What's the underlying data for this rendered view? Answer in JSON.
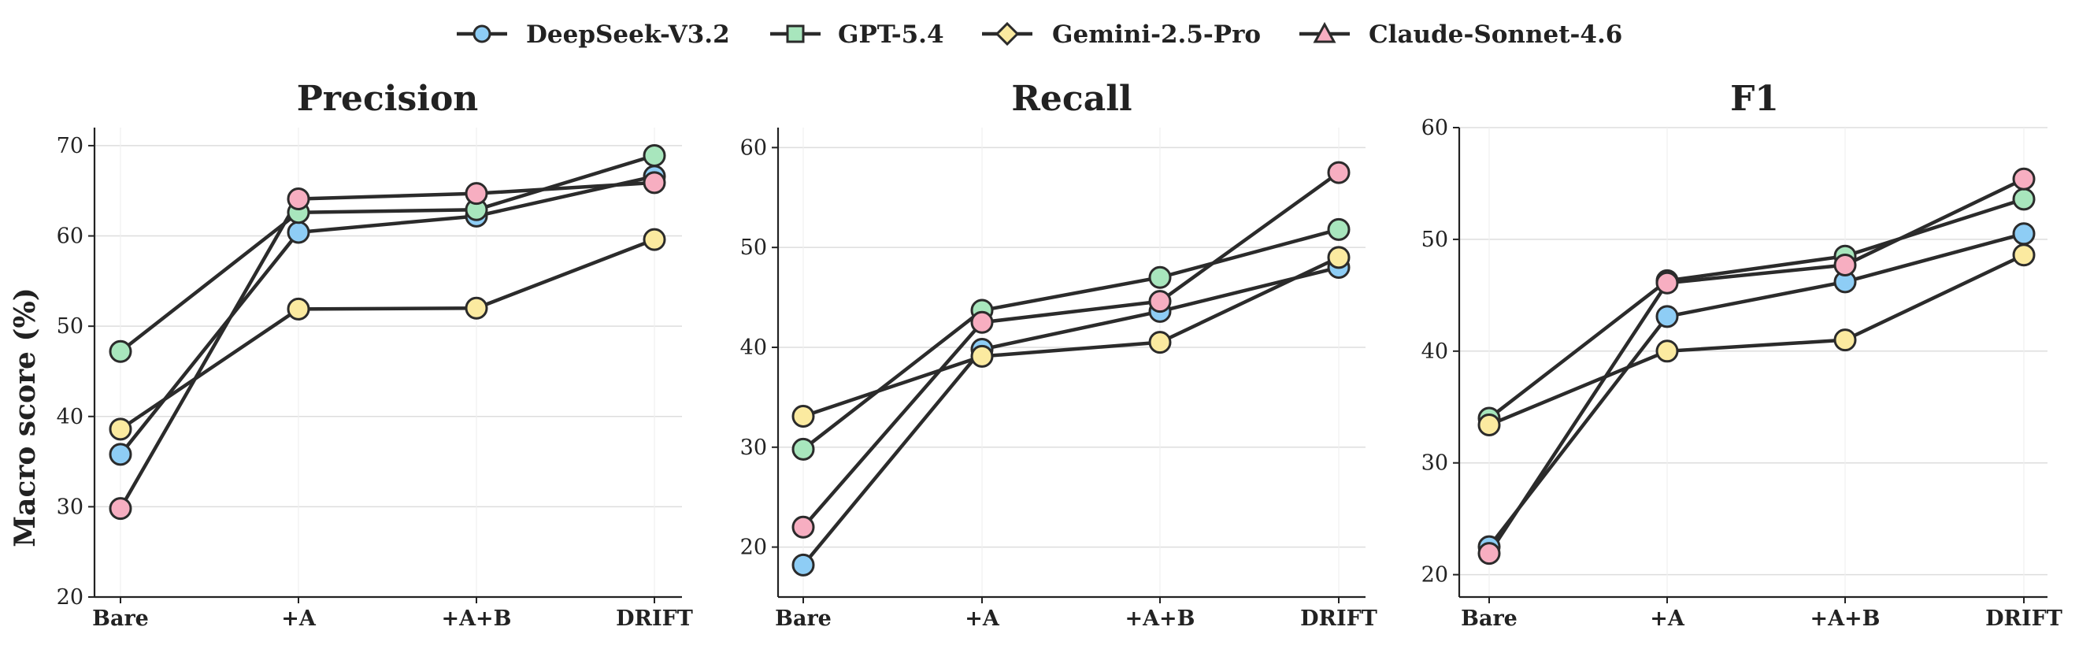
{
  "legend": {
    "placement": "top-center",
    "entries": [
      {
        "name": "DeepSeek-V3.2",
        "color": "#8ecdf5",
        "marker": "circle"
      },
      {
        "name": "GPT-5.4",
        "color": "#a8e6bd",
        "marker": "square"
      },
      {
        "name": "Gemini-2.5-Pro",
        "color": "#fbeaa0",
        "marker": "diamond"
      },
      {
        "name": "Claude-Sonnet-4.6",
        "color": "#f7aec1",
        "marker": "triangle"
      }
    ]
  },
  "y_axis_label": "Macro score (%)",
  "line_color": "#2b2b2b",
  "chart_data": [
    {
      "type": "line",
      "title": "Precision",
      "categories": [
        "Bare",
        "+A",
        "+A+B",
        "DRIFT"
      ],
      "ylabel": "Macro score (%)",
      "ylim": [
        20,
        72
      ],
      "yticks": [
        20,
        30,
        40,
        50,
        60,
        70
      ],
      "grid": true,
      "series": [
        {
          "name": "DeepSeek-V3.2",
          "values": [
            35.8,
            60.4,
            62.2,
            66.6
          ]
        },
        {
          "name": "GPT-5.4",
          "values": [
            47.2,
            62.6,
            62.9,
            68.9
          ]
        },
        {
          "name": "Gemini-2.5-Pro",
          "values": [
            38.6,
            51.9,
            52.0,
            59.6
          ]
        },
        {
          "name": "Claude-Sonnet-4.6",
          "values": [
            29.8,
            64.1,
            64.7,
            65.9
          ]
        }
      ]
    },
    {
      "type": "line",
      "title": "Recall",
      "categories": [
        "Bare",
        "+A",
        "+A+B",
        "DRIFT"
      ],
      "ylabel": "",
      "ylim": [
        15,
        62
      ],
      "yticks": [
        20,
        30,
        40,
        50,
        60
      ],
      "grid": true,
      "series": [
        {
          "name": "DeepSeek-V3.2",
          "values": [
            18.2,
            39.8,
            43.6,
            48.0
          ]
        },
        {
          "name": "GPT-5.4",
          "values": [
            29.8,
            43.7,
            47.0,
            51.8
          ]
        },
        {
          "name": "Gemini-2.5-Pro",
          "values": [
            33.1,
            39.1,
            40.5,
            49.0
          ]
        },
        {
          "name": "Claude-Sonnet-4.6",
          "values": [
            22.0,
            42.5,
            44.6,
            57.5
          ]
        }
      ]
    },
    {
      "type": "line",
      "title": "F1",
      "categories": [
        "Bare",
        "+A",
        "+A+B",
        "DRIFT"
      ],
      "ylabel": "",
      "ylim": [
        18,
        60
      ],
      "yticks": [
        20,
        30,
        40,
        50,
        60
      ],
      "grid": true,
      "series": [
        {
          "name": "DeepSeek-V3.2",
          "values": [
            22.5,
            43.1,
            46.2,
            50.5
          ]
        },
        {
          "name": "GPT-5.4",
          "values": [
            34.0,
            46.3,
            48.5,
            53.6
          ]
        },
        {
          "name": "Gemini-2.5-Pro",
          "values": [
            33.4,
            40.0,
            41.0,
            48.6
          ]
        },
        {
          "name": "Claude-Sonnet-4.6",
          "values": [
            21.9,
            46.1,
            47.7,
            55.4
          ]
        }
      ]
    }
  ]
}
